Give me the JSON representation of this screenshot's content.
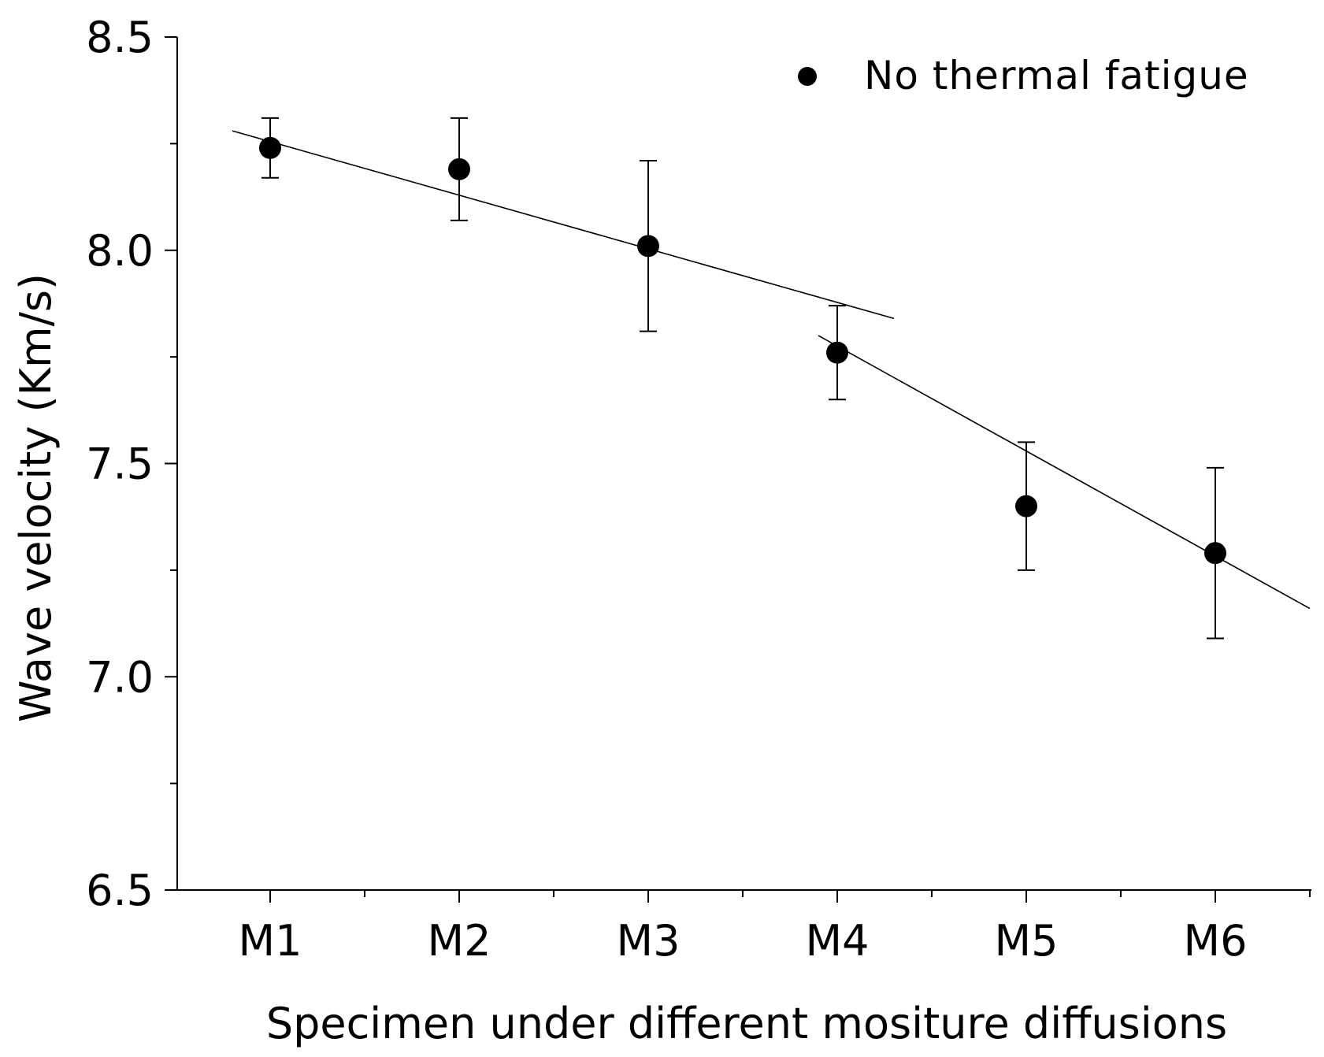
{
  "chart_data": {
    "type": "scatter",
    "title": "",
    "xlabel": "Specimen under different mositure diffusions",
    "ylabel": "Wave velocity (Km/s)",
    "categories": [
      "M1",
      "M2",
      "M3",
      "M4",
      "M5",
      "M6"
    ],
    "ylim": [
      6.5,
      8.5
    ],
    "yticks": [
      "6.5",
      "7.0",
      "7.5",
      "8.0",
      "8.5"
    ],
    "legend": {
      "position": "top-right",
      "label": "No thermal fatigue"
    },
    "series": [
      {
        "name": "No thermal fatigue",
        "values": [
          8.24,
          8.19,
          8.01,
          7.76,
          7.4,
          7.29
        ],
        "errors": [
          0.07,
          0.12,
          0.2,
          0.11,
          0.15,
          0.2
        ]
      }
    ],
    "fit_lines": [
      {
        "x_from": 0.8,
        "x_to": 4.3,
        "y_from": 8.28,
        "y_to": 7.84
      },
      {
        "x_from": 3.9,
        "x_to": 6.5,
        "y_from": 7.8,
        "y_to": 7.16
      }
    ],
    "colors": {
      "marker": "#000000",
      "line": "#000000"
    }
  }
}
